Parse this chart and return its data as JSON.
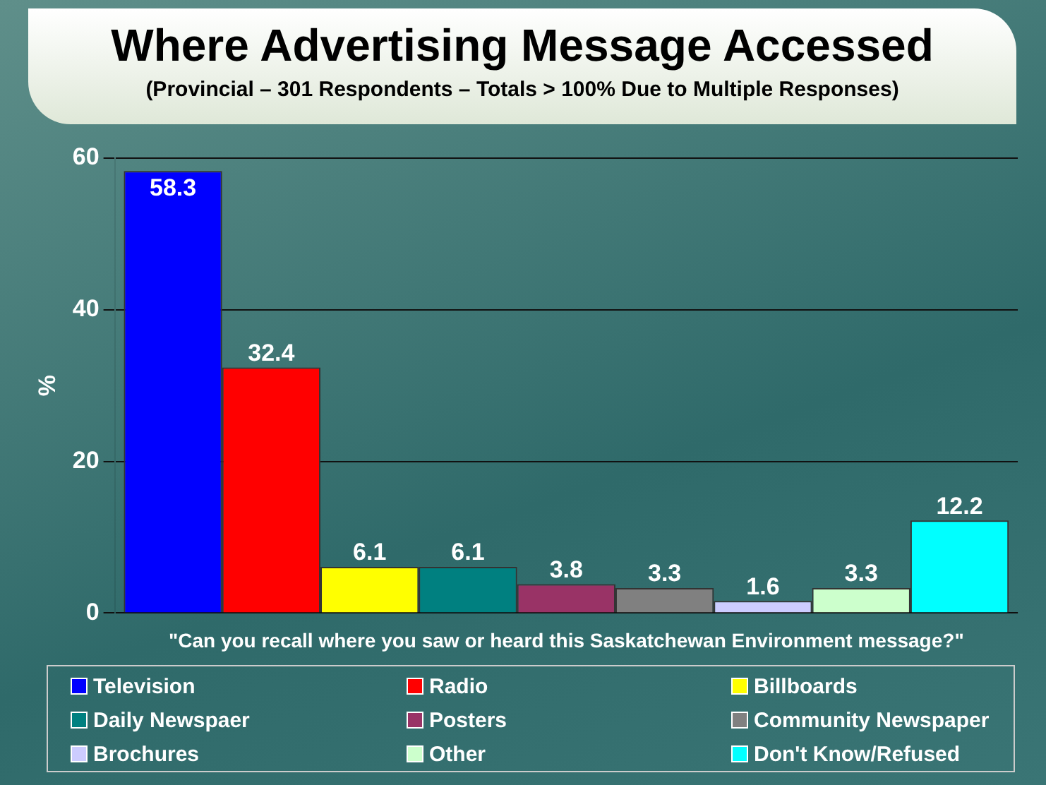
{
  "chart_data": {
    "type": "bar",
    "title": "Where Advertising Message Accessed",
    "subtitle": "(Provincial –  301 Respondents – Totals > 100% Due to Multiple Responses)",
    "xlabel": "\"Can you recall where you saw or heard this Saskatchewan Environment message?\"",
    "ylabel": "%",
    "categories": [
      null
    ],
    "series": [
      {
        "name": "Television",
        "color": "#0000ff",
        "values": [
          58.3
        ]
      },
      {
        "name": "Radio",
        "color": "#ff0000",
        "values": [
          32.4
        ]
      },
      {
        "name": "Billboards",
        "color": "#ffff00",
        "values": [
          6.1
        ]
      },
      {
        "name": "Daily Newspaer",
        "color": "#008080",
        "values": [
          6.1
        ]
      },
      {
        "name": "Posters",
        "color": "#993366",
        "values": [
          3.8
        ]
      },
      {
        "name": "Community Newspaper",
        "color": "#808080",
        "values": [
          3.3
        ]
      },
      {
        "name": "Brochures",
        "color": "#ccccff",
        "values": [
          1.6
        ]
      },
      {
        "name": "Other",
        "color": "#ccffcc",
        "values": [
          3.3
        ]
      },
      {
        "name": "Don't Know/Refused",
        "color": "#00ffff",
        "values": [
          12.2
        ]
      }
    ],
    "ylim": [
      0,
      60
    ],
    "yticks": [
      0,
      20,
      40,
      60
    ],
    "grid": "y",
    "legend": "bottom",
    "data_labels": true
  }
}
